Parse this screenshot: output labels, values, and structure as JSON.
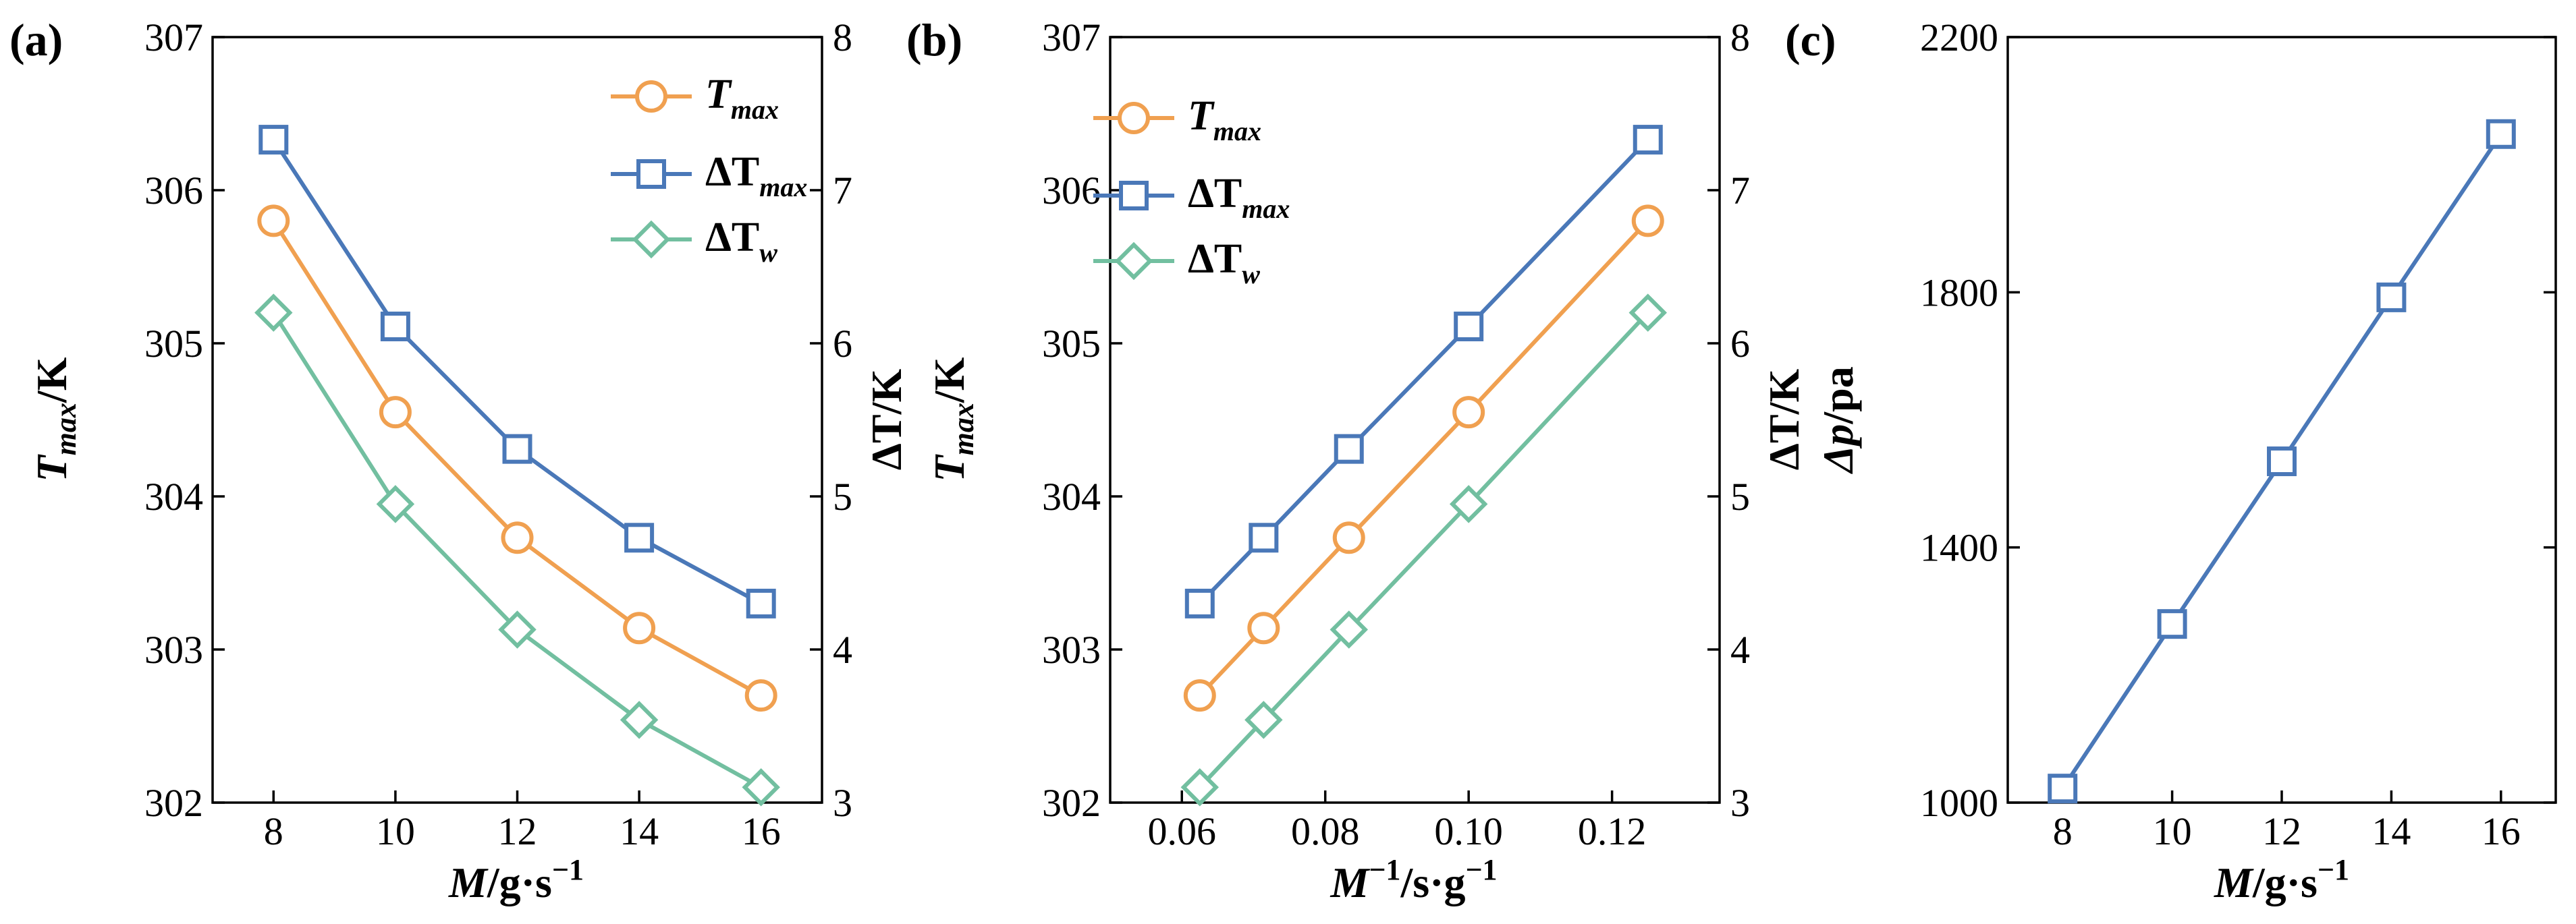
{
  "colors": {
    "tmax": "#f0a050",
    "dtmax": "#4a78b8",
    "dtw": "#72bfa0"
  },
  "chart_data": [
    {
      "type": "line",
      "panel_label": "(a)",
      "x": [
        8,
        10,
        12,
        14,
        16
      ],
      "xlim": [
        7,
        17
      ],
      "xticks": [
        8,
        10,
        12,
        14,
        16
      ],
      "x_tick_labels": [
        "8",
        "10",
        "12",
        "14",
        "16"
      ],
      "xlabel": {
        "main": "M",
        "tail": "/g·s",
        "sup": "−1"
      },
      "ylim": [
        302,
        307
      ],
      "yticks": [
        302,
        303,
        304,
        305,
        306,
        307
      ],
      "y_tick_labels": [
        "302",
        "303",
        "304",
        "305",
        "306",
        "307"
      ],
      "ylabel": {
        "main": "T",
        "sub": "max",
        "tail": "/K"
      },
      "y2lim": [
        3,
        8
      ],
      "y2ticks": [
        3,
        4,
        5,
        6,
        7,
        8
      ],
      "y2_tick_labels": [
        "3",
        "4",
        "5",
        "6",
        "7",
        "8"
      ],
      "y2label": {
        "main": "ΔT",
        "tail": "/K"
      },
      "legend_position": "top-right",
      "series": [
        {
          "key": "tmax",
          "name": "T",
          "name_sub": "max",
          "axis": "left",
          "marker": "circle",
          "values": [
            305.8,
            304.55,
            303.73,
            303.14,
            302.7
          ]
        },
        {
          "key": "dtmax",
          "name": "ΔT",
          "name_sub": "max",
          "axis": "right",
          "marker": "square",
          "values": [
            7.33,
            6.11,
            5.31,
            4.73,
            4.3
          ]
        },
        {
          "key": "dtw",
          "name": "ΔT",
          "name_sub": "w",
          "axis": "right",
          "marker": "diamond",
          "values": [
            6.2,
            4.95,
            4.13,
            3.54,
            3.1
          ]
        }
      ]
    },
    {
      "type": "line",
      "panel_label": "(b)",
      "x": [
        0.125,
        0.1,
        0.0833,
        0.0714,
        0.0625
      ],
      "xlim": [
        0.05,
        0.135
      ],
      "xticks": [
        0.06,
        0.08,
        0.1,
        0.12
      ],
      "x_tick_labels": [
        "0.06",
        "0.08",
        "0.10",
        "0.12"
      ],
      "xlabel": {
        "main": "M",
        "sup": "−1",
        "tail": "/s·g",
        "sup2": "−1"
      },
      "ylim": [
        302,
        307
      ],
      "yticks": [
        302,
        303,
        304,
        305,
        306,
        307
      ],
      "y_tick_labels": [
        "302",
        "303",
        "304",
        "305",
        "306",
        "307"
      ],
      "ylabel": {
        "main": "T",
        "sub": "max",
        "tail": "/K"
      },
      "y2lim": [
        3,
        8
      ],
      "y2ticks": [
        3,
        4,
        5,
        6,
        7,
        8
      ],
      "y2_tick_labels": [
        "3",
        "4",
        "5",
        "6",
        "7",
        "8"
      ],
      "y2label": {
        "main": "ΔT",
        "tail": "/K"
      },
      "legend_position": "top-left",
      "series": [
        {
          "key": "tmax",
          "name": "T",
          "name_sub": "max",
          "axis": "left",
          "marker": "circle",
          "values": [
            305.8,
            304.55,
            303.73,
            303.14,
            302.7
          ]
        },
        {
          "key": "dtmax",
          "name": "ΔT",
          "name_sub": "max",
          "axis": "right",
          "marker": "square",
          "values": [
            7.33,
            6.11,
            5.31,
            4.73,
            4.3
          ]
        },
        {
          "key": "dtw",
          "name": "ΔT",
          "name_sub": "w",
          "axis": "right",
          "marker": "diamond",
          "values": [
            6.2,
            4.95,
            4.13,
            3.54,
            3.1
          ]
        }
      ]
    },
    {
      "type": "line",
      "panel_label": "(c)",
      "x": [
        8,
        10,
        12,
        14,
        16
      ],
      "xlim": [
        7,
        17
      ],
      "xticks": [
        8,
        10,
        12,
        14,
        16
      ],
      "x_tick_labels": [
        "8",
        "10",
        "12",
        "14",
        "16"
      ],
      "xlabel": {
        "main": "M",
        "tail": "/g·s",
        "sup": "−1"
      },
      "ylim": [
        1000,
        2200
      ],
      "yticks": [
        1000,
        1400,
        1800,
        2200
      ],
      "y_tick_labels": [
        "1000",
        "1400",
        "1800",
        "2200"
      ],
      "ylabel": {
        "main": "Δp",
        "tail": "/pa"
      },
      "series": [
        {
          "key": "dtmax",
          "name": "Δp",
          "axis": "left",
          "marker": "square",
          "values": [
            1022,
            1280,
            1535,
            1792,
            2048
          ]
        }
      ]
    }
  ]
}
